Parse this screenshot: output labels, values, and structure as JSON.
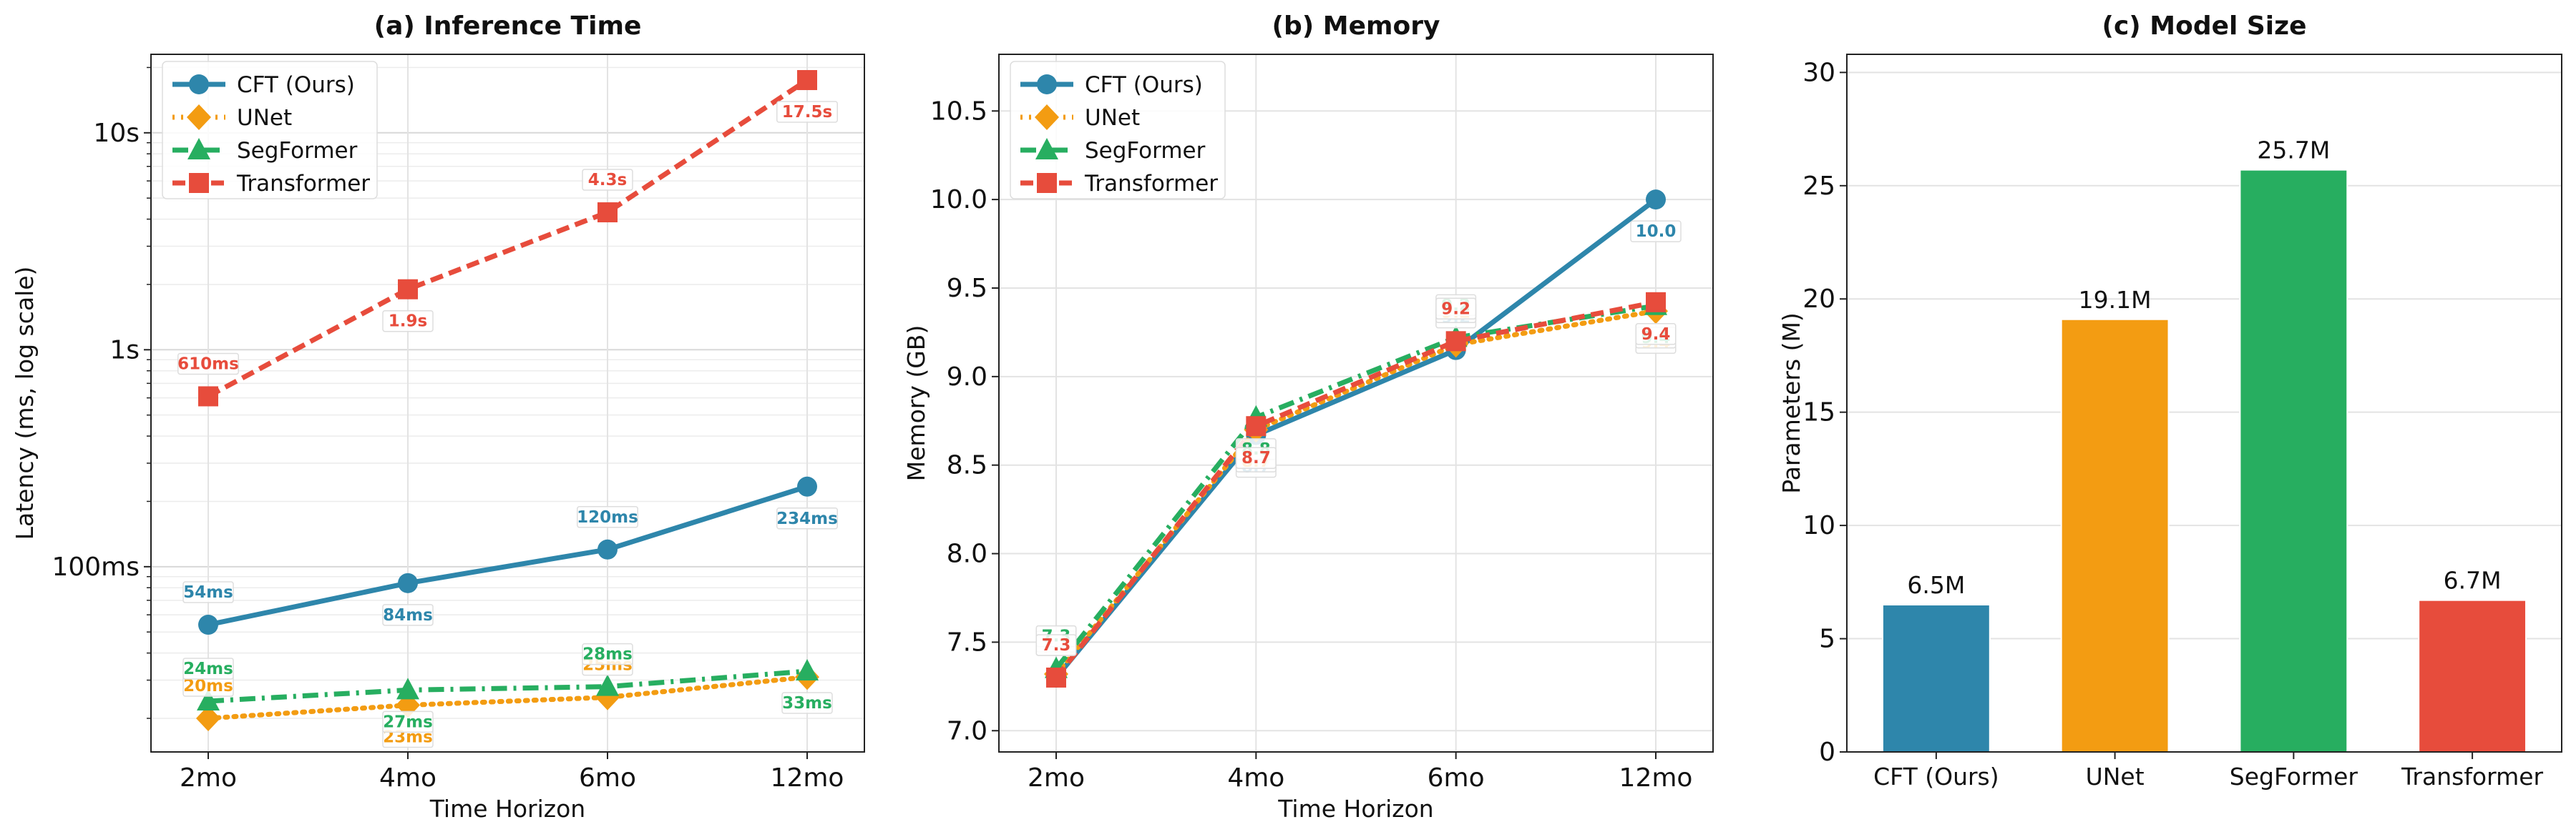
{
  "colors": {
    "cft": "#2E86AB",
    "unet": "#F39C12",
    "segformer": "#27AE60",
    "transformer": "#E74C3C"
  },
  "chart_data": [
    {
      "id": "inference",
      "type": "line",
      "title": "(a) Inference Time",
      "xlabel": "Time Horizon",
      "ylabel": "Latency (ms, log scale)",
      "yscale": "log",
      "ylim": [
        14,
        23000
      ],
      "categories": [
        "2mo",
        "4mo",
        "6mo",
        "12mo"
      ],
      "yticks": [
        {
          "value": 100,
          "label": "100ms"
        },
        {
          "value": 1000,
          "label": "1s"
        },
        {
          "value": 10000,
          "label": "10s"
        }
      ],
      "grid": true,
      "legend": "top-left",
      "series": [
        {
          "name": "CFT (Ours)",
          "key": "cft",
          "marker": "circle",
          "dash": "solid",
          "values": [
            54,
            84,
            120,
            234
          ],
          "labels": [
            "54ms",
            "84ms",
            "120ms",
            "234ms"
          ],
          "label_pos": [
            "above",
            "below",
            "above",
            "below"
          ]
        },
        {
          "name": "UNet",
          "key": "unet",
          "marker": "diamond",
          "dash": "dotted",
          "values": [
            20,
            23,
            25,
            31
          ],
          "labels": [
            "20ms",
            "23ms",
            "25ms",
            "31ms"
          ],
          "label_pos": [
            "above",
            "below",
            "above",
            "none"
          ]
        },
        {
          "name": "SegFormer",
          "key": "segformer",
          "marker": "triangle",
          "dash": "dashdot",
          "values": [
            24,
            27,
            28,
            33
          ],
          "labels": [
            "24ms",
            "27ms",
            "28ms",
            "33ms"
          ],
          "label_pos": [
            "above",
            "below",
            "above",
            "below"
          ]
        },
        {
          "name": "Transformer",
          "key": "transformer",
          "marker": "square",
          "dash": "dashed",
          "values": [
            610,
            1900,
            4300,
            17500
          ],
          "labels": [
            "610ms",
            "1.9s",
            "4.3s",
            "17.5s"
          ],
          "label_pos": [
            "above",
            "below",
            "above",
            "below"
          ]
        }
      ]
    },
    {
      "id": "memory",
      "type": "line",
      "title": "(b) Memory",
      "xlabel": "Time Horizon",
      "ylabel": "Memory (GB)",
      "yscale": "linear",
      "ylim": [
        6.88,
        10.82
      ],
      "categories": [
        "2mo",
        "4mo",
        "6mo",
        "12mo"
      ],
      "yticks": [
        {
          "value": 7.0,
          "label": "7.0"
        },
        {
          "value": 7.5,
          "label": "7.5"
        },
        {
          "value": 8.0,
          "label": "8.0"
        },
        {
          "value": 8.5,
          "label": "8.5"
        },
        {
          "value": 9.0,
          "label": "9.0"
        },
        {
          "value": 9.5,
          "label": "9.5"
        },
        {
          "value": 10.0,
          "label": "10.0"
        },
        {
          "value": 10.5,
          "label": "10.5"
        }
      ],
      "grid": true,
      "legend": "top-left",
      "series": [
        {
          "name": "CFT (Ours)",
          "key": "cft",
          "marker": "circle",
          "dash": "solid",
          "values": [
            7.3,
            8.67,
            9.15,
            10.0
          ],
          "labels": [
            "7.3",
            "8.7",
            "9.2",
            "10.0"
          ],
          "label_pos": [
            "above",
            "below",
            "above",
            "below"
          ]
        },
        {
          "name": "UNet",
          "key": "unet",
          "marker": "diamond",
          "dash": "dotted",
          "values": [
            7.32,
            8.7,
            9.18,
            9.37
          ],
          "labels": [
            "7.3",
            "8.7",
            "9.2",
            "9.4"
          ],
          "label_pos": [
            "above",
            "below",
            "above",
            "below"
          ]
        },
        {
          "name": "SegFormer",
          "key": "segformer",
          "marker": "triangle",
          "dash": "dashdot",
          "values": [
            7.35,
            8.77,
            9.22,
            9.4
          ],
          "labels": [
            "7.3",
            "8.8",
            "9.2",
            "9.4"
          ],
          "label_pos": [
            "above",
            "below",
            "above",
            "below"
          ]
        },
        {
          "name": "Transformer",
          "key": "transformer",
          "marker": "square",
          "dash": "dashed",
          "values": [
            7.3,
            8.72,
            9.2,
            9.42
          ],
          "labels": [
            "7.3",
            "8.7",
            "9.2",
            "9.4"
          ],
          "label_pos": [
            "above",
            "below",
            "above",
            "below"
          ]
        }
      ]
    },
    {
      "id": "modelsize",
      "type": "bar",
      "title": "(c) Model Size",
      "xlabel": "",
      "ylabel": "Parameters (M)",
      "ylim": [
        0,
        30.8
      ],
      "yticks": [
        {
          "value": 0,
          "label": "0"
        },
        {
          "value": 5,
          "label": "5"
        },
        {
          "value": 10,
          "label": "10"
        },
        {
          "value": 15,
          "label": "15"
        },
        {
          "value": 20,
          "label": "20"
        },
        {
          "value": 25,
          "label": "25"
        },
        {
          "value": 30,
          "label": "30"
        }
      ],
      "grid": true,
      "categories": [
        "CFT (Ours)",
        "UNet",
        "SegFormer",
        "Transformer"
      ],
      "keys": [
        "cft",
        "unet",
        "segformer",
        "transformer"
      ],
      "values": [
        6.5,
        19.1,
        25.7,
        6.7
      ],
      "labels": [
        "6.5M",
        "19.1M",
        "25.7M",
        "6.7M"
      ]
    }
  ]
}
